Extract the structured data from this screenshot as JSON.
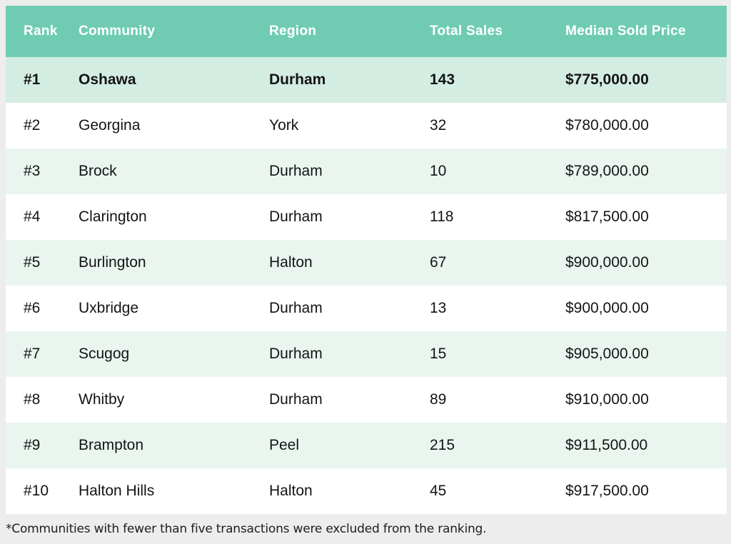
{
  "table": {
    "columns": [
      {
        "key": "rank",
        "label": "Rank"
      },
      {
        "key": "community",
        "label": "Community"
      },
      {
        "key": "region",
        "label": "Region"
      },
      {
        "key": "total_sales",
        "label": "Total Sales"
      },
      {
        "key": "median_sold_price",
        "label": "Median Sold Price"
      }
    ],
    "rows": [
      {
        "rank": "#1",
        "community": "Oshawa",
        "region": "Durham",
        "total_sales": "143",
        "median_sold_price": "$775,000.00",
        "highlight": true
      },
      {
        "rank": "#2",
        "community": "Georgina",
        "region": "York",
        "total_sales": "32",
        "median_sold_price": "$780,000.00",
        "highlight": false
      },
      {
        "rank": "#3",
        "community": "Brock",
        "region": "Durham",
        "total_sales": "10",
        "median_sold_price": "$789,000.00",
        "highlight": false
      },
      {
        "rank": "#4",
        "community": "Clarington",
        "region": "Durham",
        "total_sales": "118",
        "median_sold_price": "$817,500.00",
        "highlight": false
      },
      {
        "rank": "#5",
        "community": "Burlington",
        "region": "Halton",
        "total_sales": "67",
        "median_sold_price": "$900,000.00",
        "highlight": false
      },
      {
        "rank": "#6",
        "community": "Uxbridge",
        "region": "Durham",
        "total_sales": "13",
        "median_sold_price": "$900,000.00",
        "highlight": false
      },
      {
        "rank": "#7",
        "community": "Scugog",
        "region": "Durham",
        "total_sales": "15",
        "median_sold_price": "$905,000.00",
        "highlight": false
      },
      {
        "rank": "#8",
        "community": "Whitby",
        "region": "Durham",
        "total_sales": "89",
        "median_sold_price": "$910,000.00",
        "highlight": false
      },
      {
        "rank": "#9",
        "community": "Brampton",
        "region": "Peel",
        "total_sales": "215",
        "median_sold_price": "$911,500.00",
        "highlight": false
      },
      {
        "rank": "#10",
        "community": "Halton Hills",
        "region": "Halton",
        "total_sales": "45",
        "median_sold_price": "$917,500.00",
        "highlight": false
      }
    ]
  },
  "footnote": "*Communities with fewer than five transactions were excluded from the ranking.",
  "colors": {
    "header_bg": "#6fccb2",
    "header_text": "#ffffff",
    "highlight_row_bg": "#d4ede2",
    "alt_row_bg": "#e9f5ee",
    "row_bg": "#ffffff",
    "page_bg": "#ededed",
    "cell_text": "#141414"
  },
  "chart_data": {
    "type": "table",
    "title": "",
    "columns": [
      "Rank",
      "Community",
      "Region",
      "Total Sales",
      "Median Sold Price"
    ],
    "rows": [
      [
        "#1",
        "Oshawa",
        "Durham",
        143,
        "$775,000.00"
      ],
      [
        "#2",
        "Georgina",
        "York",
        32,
        "$780,000.00"
      ],
      [
        "#3",
        "Brock",
        "Durham",
        10,
        "$789,000.00"
      ],
      [
        "#4",
        "Clarington",
        "Durham",
        118,
        "$817,500.00"
      ],
      [
        "#5",
        "Burlington",
        "Halton",
        67,
        "$900,000.00"
      ],
      [
        "#6",
        "Uxbridge",
        "Durham",
        13,
        "$900,000.00"
      ],
      [
        "#7",
        "Scugog",
        "Durham",
        15,
        "$905,000.00"
      ],
      [
        "#8",
        "Whitby",
        "Durham",
        89,
        "$910,000.00"
      ],
      [
        "#9",
        "Brampton",
        "Peel",
        215,
        "$911,500.00"
      ],
      [
        "#10",
        "Halton Hills",
        "Halton",
        45,
        "$917,500.00"
      ]
    ],
    "annotations": [
      "*Communities with fewer than five transactions were excluded from the ranking."
    ]
  }
}
